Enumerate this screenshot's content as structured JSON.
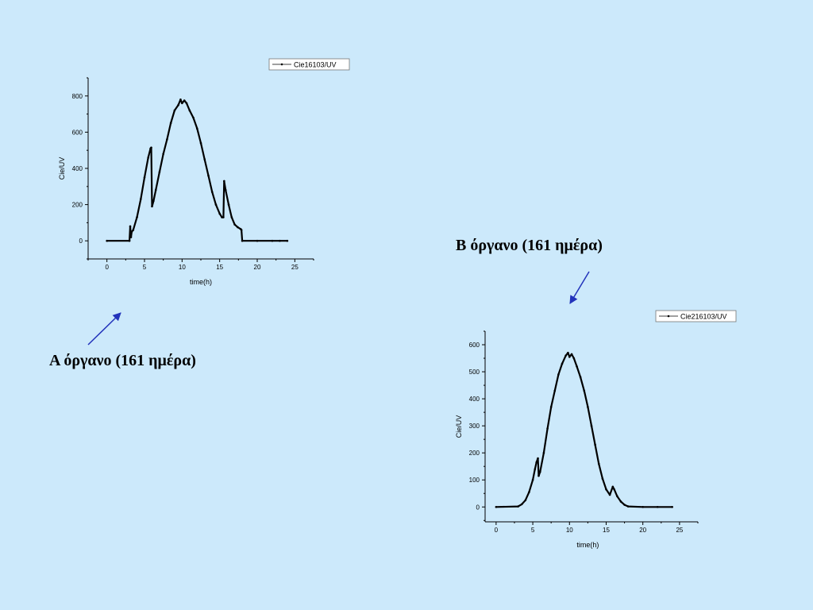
{
  "captions": {
    "a": "A όργανο (161 ημέρα)",
    "b": "B όργανο (161 ημέρα)"
  },
  "colors": {
    "background": "#cce9fb",
    "arrow": "#2233bb",
    "series": "#000000"
  },
  "chart_data": [
    {
      "type": "line",
      "legend": "Cie16103/UV",
      "legend_position": "top-right",
      "xlabel": "time(h)",
      "ylabel": "Cie/UV",
      "xlim": [
        -2.5,
        27.5
      ],
      "ylim": [
        -100,
        900
      ],
      "xticks": [
        0,
        5,
        10,
        15,
        20,
        25
      ],
      "yticks": [
        0,
        200,
        400,
        600,
        800
      ],
      "series": [
        {
          "name": "Cie16103/UV",
          "x": [
            0,
            3.0,
            3.1,
            3.2,
            3.3,
            3.5,
            4.0,
            4.5,
            5.0,
            5.5,
            5.8,
            5.9,
            6.0,
            6.2,
            6.5,
            7.0,
            7.5,
            8.0,
            8.5,
            9.0,
            9.5,
            9.8,
            10.0,
            10.3,
            10.6,
            11.0,
            11.5,
            12.0,
            12.5,
            13.0,
            13.5,
            14.0,
            14.5,
            15.0,
            15.3,
            15.5,
            15.6,
            15.8,
            16.2,
            16.6,
            17.0,
            17.4,
            17.8,
            17.9,
            18.0,
            20.0,
            22.0,
            23.0,
            24.0
          ],
          "y": [
            0,
            0,
            80,
            20,
            50,
            60,
            130,
            230,
            350,
            460,
            510,
            515,
            190,
            220,
            280,
            380,
            480,
            560,
            650,
            720,
            750,
            780,
            760,
            775,
            760,
            720,
            680,
            620,
            540,
            450,
            360,
            270,
            200,
            150,
            130,
            130,
            330,
            280,
            200,
            130,
            90,
            75,
            65,
            60,
            0,
            0,
            0,
            0,
            0
          ]
        }
      ]
    },
    {
      "type": "line",
      "legend": "Cie216103/UV",
      "legend_position": "top-right",
      "xlabel": "time(h)",
      "ylabel": "Cie/UV",
      "xlim": [
        -1.5,
        27.5
      ],
      "ylim": [
        -55,
        650
      ],
      "xticks": [
        0,
        5,
        10,
        15,
        20,
        25
      ],
      "yticks": [
        0,
        100,
        200,
        300,
        400,
        500,
        600
      ],
      "series": [
        {
          "name": "Cie216103/UV",
          "x": [
            0,
            3.0,
            3.5,
            4.0,
            4.5,
            5.0,
            5.3,
            5.5,
            5.7,
            5.8,
            6.0,
            6.5,
            7.0,
            7.5,
            8.0,
            8.5,
            9.0,
            9.5,
            9.8,
            10.0,
            10.3,
            10.6,
            11.0,
            11.5,
            12.0,
            12.5,
            13.0,
            13.5,
            14.0,
            14.5,
            15.0,
            15.5,
            15.9,
            16.1,
            16.5,
            17.0,
            17.5,
            18.0,
            20.0,
            22.0,
            24.0
          ],
          "y": [
            0,
            2,
            10,
            25,
            55,
            100,
            140,
            165,
            180,
            115,
            130,
            200,
            290,
            370,
            430,
            490,
            530,
            560,
            570,
            555,
            565,
            550,
            520,
            480,
            430,
            370,
            300,
            230,
            160,
            105,
            65,
            45,
            75,
            65,
            40,
            20,
            8,
            2,
            0,
            0,
            0
          ]
        }
      ]
    }
  ]
}
